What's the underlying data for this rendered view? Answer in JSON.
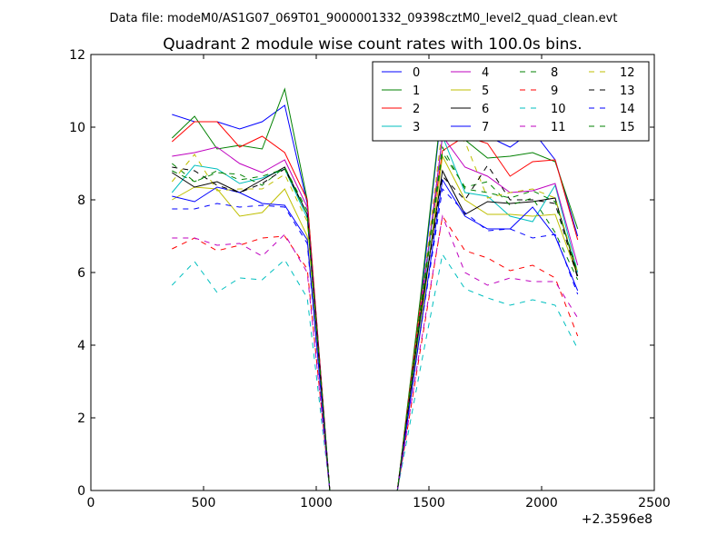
{
  "suptitle": "Data file: modeM0/AS1G07_069T01_9000001332_09398cztM0_level2_quad_clean.evt",
  "chart_data": {
    "type": "line",
    "title": "Quadrant 2 module wise count rates with 100.0s bins.",
    "xlabel": "",
    "ylabel": "",
    "x_offset_label": "+2.3596e8",
    "xlim": [
      0,
      2500
    ],
    "ylim": [
      0,
      12
    ],
    "xticks": [
      0,
      500,
      1000,
      1500,
      2000,
      2500
    ],
    "yticks": [
      0,
      2,
      4,
      6,
      8,
      10,
      12
    ],
    "grid": false,
    "legend": {
      "placement": "top-right",
      "columns": 4
    },
    "x": [
      360,
      460,
      560,
      660,
      760,
      860,
      960,
      1060,
      1160,
      1260,
      1360,
      1460,
      1560,
      1660,
      1760,
      1860,
      1960,
      2060,
      2160
    ],
    "series": [
      {
        "name": "0",
        "color": "#0000ff",
        "dash": "solid",
        "values": [
          10.35,
          10.15,
          10.15,
          9.95,
          10.15,
          10.6,
          7.9,
          0,
          0,
          0,
          0,
          5.0,
          10.7,
          9.9,
          9.75,
          9.45,
          9.9,
          9.1,
          7.0
        ]
      },
      {
        "name": "1",
        "color": "#008000",
        "dash": "solid",
        "values": [
          9.7,
          10.3,
          9.4,
          9.5,
          9.4,
          11.05,
          8.0,
          0,
          0,
          0,
          0,
          5.2,
          10.75,
          9.65,
          9.15,
          9.2,
          9.3,
          9.05,
          7.2
        ]
      },
      {
        "name": "2",
        "color": "#ff0000",
        "dash": "solid",
        "values": [
          9.6,
          10.15,
          10.15,
          9.45,
          9.75,
          9.3,
          8.0,
          0,
          0,
          0,
          0,
          5.0,
          9.35,
          9.75,
          9.55,
          8.65,
          9.05,
          9.1,
          6.9
        ]
      },
      {
        "name": "3",
        "color": "#00bfbf",
        "dash": "solid",
        "values": [
          8.2,
          8.95,
          8.85,
          8.45,
          8.6,
          8.85,
          7.5,
          0,
          0,
          0,
          0,
          4.6,
          9.75,
          8.2,
          8.1,
          7.55,
          7.4,
          8.4,
          6.0
        ]
      },
      {
        "name": "4",
        "color": "#bf00bf",
        "dash": "solid",
        "values": [
          9.2,
          9.3,
          9.45,
          9.0,
          8.75,
          9.1,
          7.8,
          0,
          0,
          0,
          0,
          4.8,
          9.75,
          8.9,
          8.65,
          8.2,
          8.25,
          8.45,
          6.2
        ]
      },
      {
        "name": "5",
        "color": "#bfbf00",
        "dash": "solid",
        "values": [
          8.0,
          8.35,
          8.3,
          7.55,
          7.65,
          8.3,
          7.0,
          0,
          0,
          0,
          0,
          4.4,
          9.2,
          8.0,
          7.6,
          7.6,
          7.55,
          7.6,
          5.9
        ]
      },
      {
        "name": "6",
        "color": "#000000",
        "dash": "solid",
        "values": [
          8.75,
          8.35,
          8.5,
          8.2,
          8.55,
          8.9,
          7.6,
          0,
          0,
          0,
          0,
          4.7,
          8.8,
          7.6,
          7.95,
          7.9,
          7.95,
          8.05,
          5.9
        ]
      },
      {
        "name": "7",
        "color": "#0000ff",
        "dash": "solid",
        "values": [
          8.1,
          7.95,
          8.35,
          8.2,
          7.9,
          7.85,
          6.9,
          0,
          0,
          0,
          0,
          4.3,
          8.55,
          7.55,
          7.2,
          7.2,
          7.8,
          7.0,
          5.5
        ]
      },
      {
        "name": "8",
        "color": "#008000",
        "dash": "dashed",
        "values": [
          9.0,
          8.5,
          8.75,
          8.7,
          8.4,
          8.9,
          7.7,
          0,
          0,
          0,
          0,
          4.8,
          9.3,
          8.35,
          8.5,
          7.85,
          8.05,
          7.1,
          5.8
        ]
      },
      {
        "name": "9",
        "color": "#ff0000",
        "dash": "dashed",
        "values": [
          6.65,
          6.95,
          6.6,
          6.75,
          6.95,
          7.0,
          6.1,
          0,
          0,
          0,
          0,
          3.8,
          7.55,
          6.6,
          6.4,
          6.05,
          6.2,
          5.85,
          4.25
        ]
      },
      {
        "name": "10",
        "color": "#00bfbf",
        "dash": "dashed",
        "values": [
          5.65,
          6.3,
          5.45,
          5.85,
          5.8,
          6.35,
          5.3,
          0,
          0,
          0,
          0,
          3.3,
          6.5,
          5.55,
          5.3,
          5.1,
          5.25,
          5.1,
          3.9
        ]
      },
      {
        "name": "11",
        "color": "#bf00bf",
        "dash": "dashed",
        "values": [
          6.95,
          6.95,
          6.75,
          6.8,
          6.45,
          7.05,
          6.0,
          0,
          0,
          0,
          0,
          3.9,
          7.55,
          6.0,
          5.65,
          5.85,
          5.75,
          5.75,
          4.75
        ]
      },
      {
        "name": "12",
        "color": "#bfbf00",
        "dash": "dashed",
        "values": [
          8.5,
          9.25,
          8.25,
          8.3,
          8.3,
          8.7,
          7.4,
          0,
          0,
          0,
          0,
          4.9,
          10.0,
          9.6,
          8.05,
          8.2,
          8.3,
          8.05,
          6.0
        ]
      },
      {
        "name": "13",
        "color": "#000000",
        "dash": "dashed",
        "values": [
          8.9,
          8.8,
          8.4,
          8.2,
          8.45,
          8.85,
          7.6,
          0,
          0,
          0,
          0,
          4.7,
          8.65,
          8.0,
          8.95,
          8.0,
          8.0,
          7.9,
          5.85
        ]
      },
      {
        "name": "14",
        "color": "#0000ff",
        "dash": "dashed",
        "values": [
          7.75,
          7.75,
          7.9,
          7.8,
          7.85,
          7.8,
          6.8,
          0,
          0,
          0,
          0,
          4.3,
          8.3,
          7.65,
          7.15,
          7.2,
          6.95,
          7.05,
          5.4
        ]
      },
      {
        "name": "15",
        "color": "#008000",
        "dash": "dashed",
        "values": [
          8.8,
          8.5,
          8.8,
          8.55,
          8.65,
          8.85,
          7.6,
          0,
          0,
          0,
          0,
          4.9,
          9.45,
          8.3,
          8.2,
          8.05,
          8.25,
          7.95,
          6.0
        ]
      }
    ]
  }
}
